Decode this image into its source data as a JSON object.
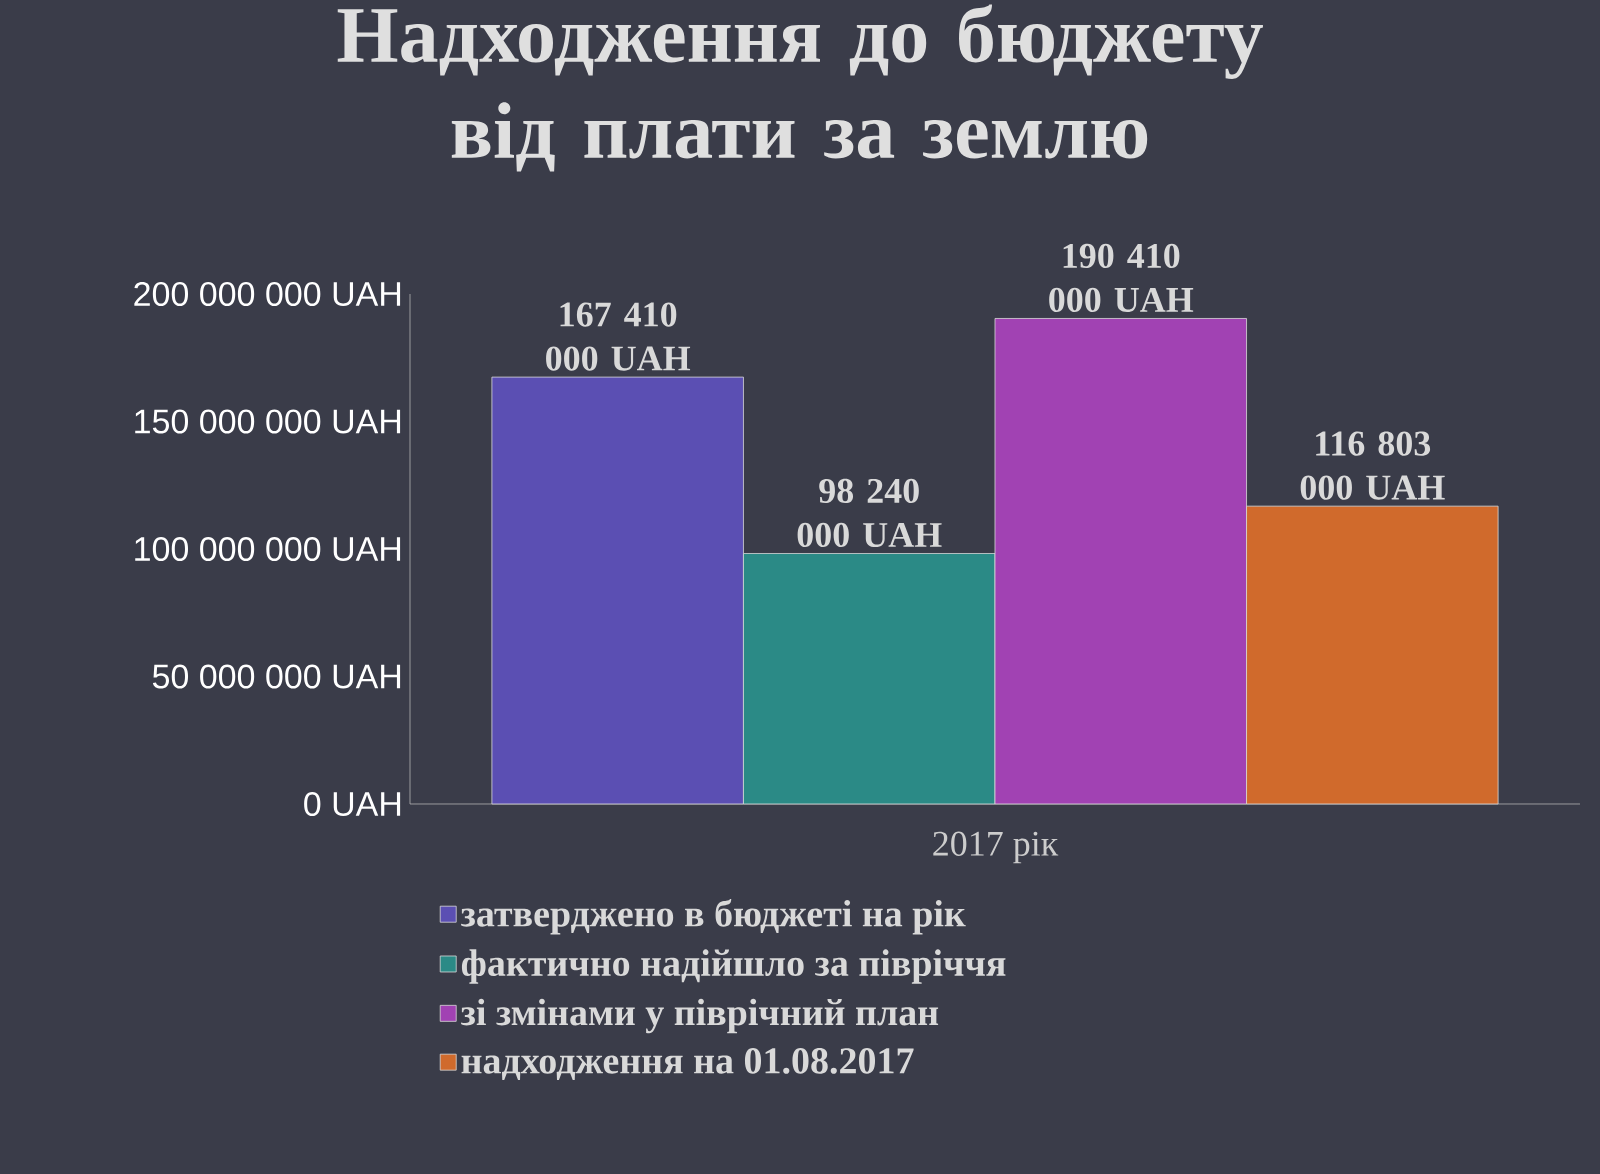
{
  "chart_data": {
    "type": "bar",
    "title": "Надходження до бюджету від плати за землю",
    "categories": [
      "2017 рік"
    ],
    "series": [
      {
        "name": "затверджено в бюджеті на рік",
        "color": "#5b4fb3",
        "values": [
          167410000
        ],
        "value_labels": [
          "167 410 000 UAH"
        ]
      },
      {
        "name": "фактично надійшло за півріччя",
        "color": "#2b8a86",
        "values": [
          98240000
        ],
        "value_labels": [
          "98 240 000 UAH"
        ]
      },
      {
        "name": "зі змінами у піврічний план",
        "color": "#a142b3",
        "values": [
          190410000
        ],
        "value_labels": [
          "190 410 000 UAH"
        ]
      },
      {
        "name": "надходження на 01.08.2017",
        "color": "#d06a2c",
        "values": [
          116803000
        ],
        "value_labels": [
          "116 803 000 UAH"
        ]
      }
    ],
    "ylim": [
      0,
      200000000
    ],
    "yticks": [
      {
        "value": 0,
        "label": "0 UAH"
      },
      {
        "value": 50000000,
        "label": "50 000 000 UAH"
      },
      {
        "value": 100000000,
        "label": "100 000 000 UAH"
      },
      {
        "value": 150000000,
        "label": "150 000 000 UAH"
      },
      {
        "value": 200000000,
        "label": "200 000 000 UAH"
      }
    ],
    "legend": "bottom"
  }
}
